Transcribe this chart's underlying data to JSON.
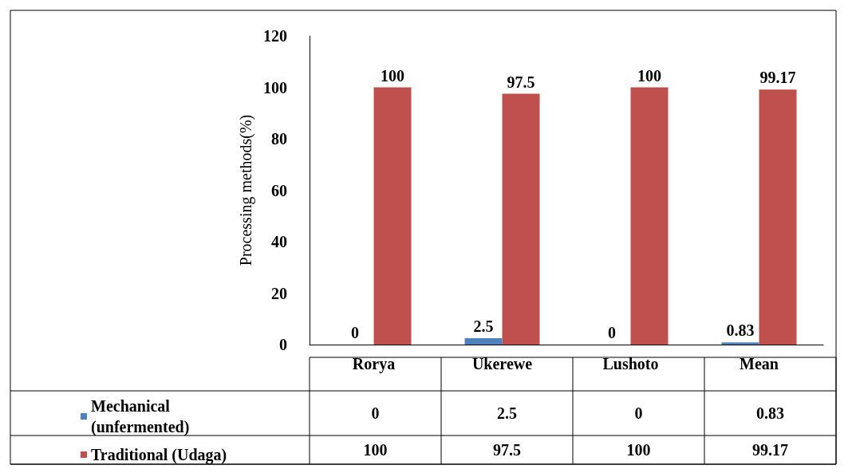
{
  "chart_data": {
    "type": "bar",
    "ylabel": "Processing methods(%)",
    "categories": [
      "Rorya",
      "Ukerewe",
      "Lushoto",
      "Mean"
    ],
    "series": [
      {
        "name": "Mechanical (unfermented)",
        "color": "#4f81bd",
        "values": [
          0,
          2.5,
          0,
          0.83
        ],
        "value_labels": [
          "0",
          "2.5",
          "0",
          "0.83"
        ]
      },
      {
        "name": "Traditional (Udaga)",
        "color": "#c0504d",
        "values": [
          100,
          97.5,
          100,
          99.17
        ],
        "value_labels": [
          "100",
          "97.5",
          "100",
          "99.17"
        ]
      }
    ],
    "ylim": [
      0,
      120
    ],
    "yticks": [
      0,
      20,
      40,
      60,
      80,
      100,
      120
    ],
    "grid": false,
    "legend": "bottom"
  }
}
